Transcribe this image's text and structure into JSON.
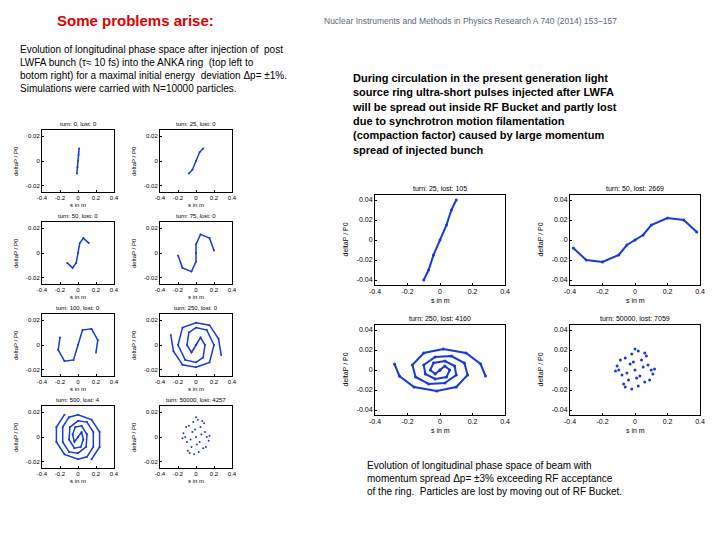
{
  "slide": {
    "title": "Some problems arise:",
    "journal": "Nuclear Instruments and Methods in Physics Research A 740 (2014) 153–157",
    "left_caption": [
      "Evolution of longitudinal phase space after injection of  post",
      "LWFA bunch (τ≈ 10 fs) into the ANKA ring  (top left to",
      "botom right) for a maximal initial energy  deviation Δp= ±1%.",
      "Simulations were carried with N=10000 particles."
    ],
    "right_text": [
      "During circulation in the present generation light",
      "source ring ultra-short pulses injected after LWFA",
      "will be spread out inside RF Bucket and partly lost",
      "due to synchrotron motion filamentation",
      "(compaction factor) caused by large momentum",
      "spread of injected bunch"
    ],
    "right_caption": [
      "Evolution of longitudinal phase space of beam with",
      "momentum spread Δp= ±3% exceeding RF acceptance",
      "of the ring.  Particles are lost by moving out of RF Bucket."
    ]
  },
  "chart_data": [
    {
      "type": "line",
      "title": "turn: 0, lost: 0",
      "xlabel": "s in m",
      "ylabel": "deltaP / P0",
      "color": "#1a3ad6",
      "grid": false,
      "x": [
        -0.012,
        -0.006,
        0,
        0.006,
        0.012
      ],
      "values": [
        -0.01,
        -0.005,
        0,
        0.005,
        0.01
      ],
      "xlim": [
        -0.4,
        0.4
      ],
      "xticks": [
        -0.4,
        -0.2,
        0,
        0.2,
        0.4
      ],
      "ylim": [
        -0.025,
        0.025
      ],
      "yticks": [
        -0.02,
        0,
        0.02
      ]
    },
    {
      "type": "line",
      "title": "turn: 25, lost: 0",
      "xlabel": "s in m",
      "ylabel": "deltaP / P0",
      "color": "#1a3ad6",
      "grid": false,
      "x": [
        -0.08,
        -0.04,
        0,
        0.04,
        0.08
      ],
      "values": [
        -0.01,
        -0.007,
        0,
        0.007,
        0.01
      ],
      "xlim": [
        -0.4,
        0.4
      ],
      "xticks": [
        -0.4,
        -0.2,
        0,
        0.2,
        0.4
      ],
      "ylim": [
        -0.025,
        0.025
      ],
      "yticks": [
        -0.02,
        0,
        0.02
      ]
    },
    {
      "type": "line",
      "title": "turn: 50, lost: 0",
      "xlabel": "s in m",
      "ylabel": "deltaP / P0",
      "color": "#1a3ad6",
      "grid": false,
      "x": [
        -0.12,
        -0.06,
        -0.02,
        0,
        0.02,
        0.06,
        0.12
      ],
      "values": [
        -0.008,
        -0.012,
        -0.008,
        0,
        0.008,
        0.012,
        0.008
      ],
      "xlim": [
        -0.4,
        0.4
      ],
      "xticks": [
        -0.4,
        -0.2,
        0,
        0.2,
        0.4
      ],
      "ylim": [
        -0.025,
        0.025
      ],
      "yticks": [
        -0.02,
        0,
        0.02
      ]
    },
    {
      "type": "line",
      "title": "turn: 75, lost: 0",
      "xlabel": "s in m",
      "ylabel": "deltaP / P0",
      "color": "#1a3ad6",
      "grid": false,
      "x": [
        0.2,
        0.15,
        0.05,
        0,
        0,
        0,
        -0.05,
        -0.15,
        -0.2
      ],
      "values": [
        0.002,
        0.012,
        0.015,
        0.007,
        0,
        -0.007,
        -0.015,
        -0.012,
        -0.002
      ],
      "xlim": [
        -0.4,
        0.4
      ],
      "xticks": [
        -0.4,
        -0.2,
        0,
        0.2,
        0.4
      ],
      "ylim": [
        -0.025,
        0.025
      ],
      "yticks": [
        -0.02,
        0,
        0.02
      ]
    },
    {
      "type": "line",
      "title": "turn: 100, lost: 0",
      "xlabel": "s in m",
      "ylabel": "deltaP / P0",
      "color": "#1a3ad6",
      "grid": false,
      "x": [
        -0.2,
        -0.22,
        -0.15,
        -0.05,
        0,
        0.05,
        0.15,
        0.22,
        0.2
      ],
      "values": [
        0.006,
        -0.004,
        -0.013,
        -0.012,
        0,
        0.012,
        0.013,
        0.004,
        -0.006
      ],
      "xlim": [
        -0.4,
        0.4
      ],
      "xticks": [
        -0.4,
        -0.2,
        0,
        0.2,
        0.4
      ],
      "ylim": [
        -0.025,
        0.025
      ],
      "yticks": [
        -0.02,
        0,
        0.02
      ]
    },
    {
      "type": "line",
      "title": "turn: 250, lost: 0",
      "xlabel": "s in m",
      "ylabel": "deltaP / P0",
      "color": "#1a3ad6",
      "grid": false,
      "x": [
        0,
        0.05,
        0.1,
        0.08,
        0,
        -0.12,
        -0.2,
        -0.15,
        0,
        0.15,
        0.25,
        0.28,
        null,
        0,
        -0.05,
        -0.1,
        -0.08,
        0,
        0.12,
        0.2,
        0.15,
        0,
        -0.15,
        -0.25,
        -0.28
      ],
      "values": [
        0,
        0.006,
        0,
        -0.01,
        -0.014,
        -0.012,
        0,
        0.014,
        0.018,
        0.016,
        0.005,
        -0.008,
        null,
        0,
        -0.006,
        0,
        0.01,
        0.014,
        0.012,
        0,
        -0.014,
        -0.018,
        -0.016,
        -0.005,
        0.008
      ],
      "xlim": [
        -0.4,
        0.4
      ],
      "xticks": [
        -0.4,
        -0.2,
        0,
        0.2,
        0.4
      ],
      "ylim": [
        -0.025,
        0.025
      ],
      "yticks": [
        -0.02,
        0,
        0.02
      ]
    },
    {
      "type": "line",
      "title": "turn: 500, lost: 4",
      "xlabel": "s in m",
      "ylabel": "deltaP / P0",
      "color": "#1a3ad6",
      "grid": false,
      "x": [
        0,
        0.04,
        0.06,
        0.03,
        -0.04,
        -0.1,
        -0.09,
        0,
        0.1,
        0.17,
        0.17,
        0.1,
        0,
        -0.15,
        -0.24,
        -0.24,
        -0.15,
        null,
        0,
        -0.04,
        -0.06,
        -0.03,
        0.04,
        0.1,
        0.09,
        0,
        -0.1,
        -0.17,
        -0.17,
        -0.1,
        0,
        0.15,
        0.24,
        0.24,
        0.15
      ],
      "values": [
        0,
        0.004,
        -0.002,
        -0.008,
        -0.009,
        -0.002,
        0.008,
        0.013,
        0.012,
        0.004,
        -0.008,
        -0.016,
        -0.018,
        -0.014,
        -0.004,
        0.008,
        0.018,
        null,
        0,
        -0.004,
        0.002,
        0.008,
        0.009,
        0.002,
        -0.008,
        -0.013,
        -0.012,
        -0.004,
        0.008,
        0.016,
        0.018,
        0.014,
        0.004,
        -0.008,
        -0.018
      ],
      "xlim": [
        -0.4,
        0.4
      ],
      "xticks": [
        -0.4,
        -0.2,
        0,
        0.2,
        0.4
      ],
      "ylim": [
        -0.025,
        0.025
      ],
      "yticks": [
        -0.02,
        0,
        0.02
      ]
    },
    {
      "type": "scatter",
      "title": "turn: 50000, lost: 4257",
      "xlabel": "s in m",
      "ylabel": "deltaP / P0",
      "color": "#1a3ad6",
      "grid": false,
      "x": [
        0,
        0.05,
        -0.05,
        0.1,
        -0.1,
        0.03,
        -0.03,
        0.08,
        -0.08,
        0.12,
        -0.12,
        0.02,
        -0.02,
        0.06,
        -0.06,
        0.14,
        -0.14,
        0.09,
        -0.09,
        0.04,
        -0.04,
        0,
        0.11,
        -0.11,
        0.07,
        -0.07,
        0.01,
        -0.01,
        0.15,
        -0.15
      ],
      "values": [
        0,
        0.008,
        -0.008,
        0.004,
        -0.004,
        -0.012,
        0.012,
        -0.009,
        0.009,
        0,
        0,
        0.014,
        -0.014,
        0.002,
        -0.002,
        -0.003,
        0.003,
        0.011,
        -0.011,
        -0.004,
        0.004,
        0.016,
        -0.008,
        0.008,
        0.013,
        -0.013,
        -0.006,
        0.006,
        0.001,
        -0.001
      ],
      "xlim": [
        -0.4,
        0.4
      ],
      "xticks": [
        -0.4,
        -0.2,
        0,
        0.2,
        0.4
      ],
      "ylim": [
        -0.025,
        0.025
      ],
      "yticks": [
        -0.02,
        0,
        0.02
      ]
    },
    {
      "type": "line",
      "title": "turn: 25, lost: 105",
      "xlabel": "s in m",
      "ylabel": "deltaP / P0",
      "color": "#1a3ad6",
      "grid": false,
      "x": [
        -0.1,
        -0.07,
        -0.04,
        0,
        0.04,
        0.07,
        0.1
      ],
      "values": [
        -0.04,
        -0.03,
        -0.015,
        0,
        0.015,
        0.03,
        0.04
      ],
      "xlim": [
        -0.4,
        0.4
      ],
      "xticks": [
        -0.4,
        -0.2,
        0,
        0.2,
        0.4
      ],
      "ylim": [
        -0.045,
        0.045
      ],
      "yticks": [
        -0.04,
        -0.02,
        0,
        0.02,
        0.04
      ]
    },
    {
      "type": "line",
      "title": "turn: 50, lost: 2669",
      "xlabel": "s in m",
      "ylabel": "deltaP / P0",
      "color": "#1a3ad6",
      "grid": false,
      "x": [
        -0.38,
        -0.3,
        -0.2,
        -0.1,
        -0.05,
        0,
        0.05,
        0.1,
        0.2,
        0.3,
        0.38
      ],
      "values": [
        -0.008,
        -0.02,
        -0.022,
        -0.015,
        -0.005,
        0,
        0.005,
        0.015,
        0.022,
        0.02,
        0.008
      ],
      "xlim": [
        -0.4,
        0.4
      ],
      "xticks": [
        -0.4,
        -0.2,
        0,
        0.2,
        0.4
      ],
      "ylim": [
        -0.045,
        0.045
      ],
      "yticks": [
        -0.04,
        -0.02,
        0,
        0.02,
        0.04
      ]
    },
    {
      "type": "line",
      "title": "turn: 250, lost: 4160",
      "xlabel": "s in m",
      "ylabel": "deltaP / P0",
      "color": "#1a3ad6",
      "grid": false,
      "x": [
        0,
        0.03,
        0.06,
        0.04,
        -0.03,
        -0.09,
        -0.1,
        -0.03,
        0.07,
        0.15,
        0.17,
        0.1,
        -0.02,
        -0.16,
        -0.25,
        -0.28,
        null,
        0,
        -0.03,
        -0.06,
        -0.04,
        0.03,
        0.09,
        0.1,
        0.03,
        -0.07,
        -0.15,
        -0.17,
        -0.1,
        0.02,
        0.16,
        0.25,
        0.28
      ],
      "values": [
        0,
        0.004,
        0,
        -0.007,
        -0.009,
        -0.004,
        0.005,
        0.013,
        0.014,
        0.007,
        -0.005,
        -0.017,
        -0.021,
        -0.017,
        -0.006,
        0.006,
        null,
        0,
        -0.004,
        0,
        0.007,
        0.009,
        0.004,
        -0.005,
        -0.013,
        -0.014,
        -0.007,
        0.005,
        0.017,
        0.021,
        0.017,
        0.006,
        -0.006
      ],
      "xlim": [
        -0.4,
        0.4
      ],
      "xticks": [
        -0.4,
        -0.2,
        0,
        0.2,
        0.4
      ],
      "ylim": [
        -0.045,
        0.045
      ],
      "yticks": [
        -0.04,
        -0.02,
        0,
        0.02,
        0.04
      ]
    },
    {
      "type": "scatter",
      "title": "turn: 50000, lost: 7059",
      "xlabel": "s in m",
      "ylabel": "deltaP / P0",
      "color": "#1a3ad6",
      "grid": false,
      "x": [
        0,
        0.04,
        -0.04,
        0.08,
        -0.08,
        0.02,
        -0.02,
        0.06,
        -0.06,
        0.1,
        -0.1,
        0.02,
        -0.02,
        0.05,
        -0.05,
        0.11,
        -0.11,
        0.07,
        -0.07,
        0.03,
        -0.03,
        0,
        0.09,
        -0.09,
        0.06,
        -0.06,
        0.01,
        -0.01,
        0.12,
        -0.12
      ],
      "values": [
        0,
        0.01,
        -0.01,
        0.005,
        -0.005,
        -0.016,
        0.016,
        -0.012,
        0.012,
        0,
        0,
        0.019,
        -0.019,
        0.003,
        -0.003,
        -0.004,
        0.004,
        0.014,
        -0.014,
        -0.006,
        0.006,
        0.021,
        -0.01,
        0.01,
        0.017,
        -0.017,
        -0.008,
        0.008,
        0.001,
        -0.001
      ],
      "xlim": [
        -0.4,
        0.4
      ],
      "xticks": [
        -0.4,
        -0.2,
        0,
        0.2,
        0.4
      ],
      "ylim": [
        -0.045,
        0.045
      ],
      "yticks": [
        -0.04,
        -0.02,
        0,
        0.02,
        0.04
      ]
    }
  ]
}
